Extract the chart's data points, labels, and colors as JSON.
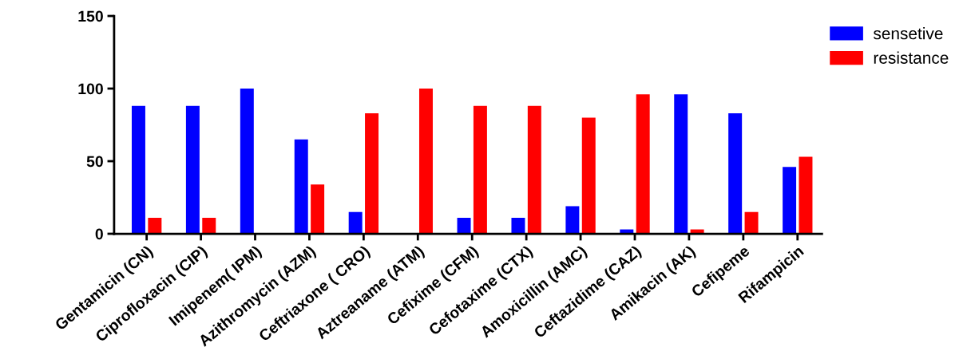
{
  "chart_data": {
    "type": "bar",
    "categories": [
      "Gentamicin (CN)",
      "Ciprofloxacin (CIP)",
      "Imipenem( IPM)",
      "Azithromycin (AZM)",
      "Ceftriaxone ( CRO)",
      "Aztreaname (ATM)",
      "Cefixime (CFM)",
      "Cefotaxime (CTX)",
      "Amoxicillin (AMC)",
      "Ceftazidime (CAZ)",
      "Amikacin (AK)",
      "Cefipeme",
      "Rifampicin"
    ],
    "series": [
      {
        "name": "sensetive",
        "color": "#0000ff",
        "values": [
          88,
          88,
          100,
          65,
          15,
          0,
          11,
          11,
          19,
          3,
          96,
          83,
          46
        ]
      },
      {
        "name": "resistance",
        "color": "#ff0000",
        "values": [
          11,
          11,
          0,
          34,
          83,
          100,
          88,
          88,
          80,
          96,
          3,
          15,
          53
        ]
      }
    ],
    "ylim": [
      0,
      150
    ],
    "yticks": [
      0,
      50,
      100,
      150
    ],
    "grid": false,
    "legend": "top right"
  }
}
